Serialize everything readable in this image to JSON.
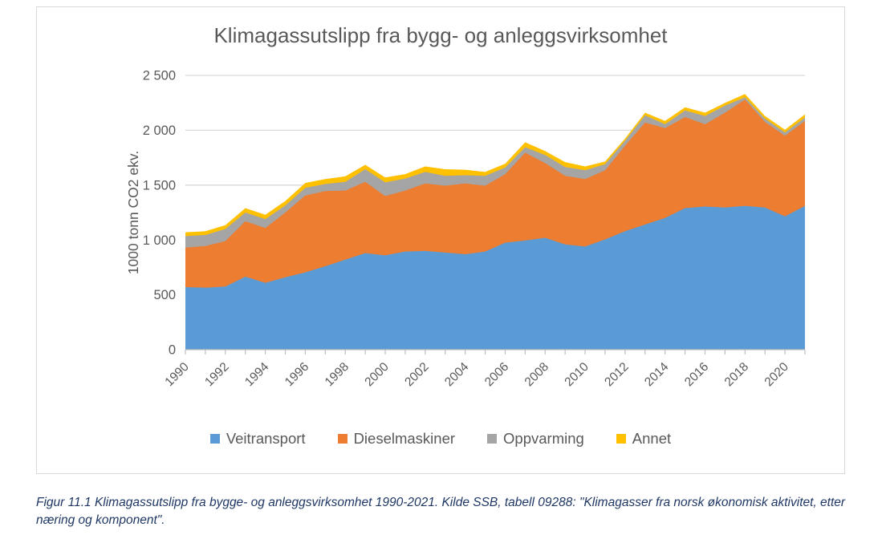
{
  "figure": {
    "title": "Klimagassutslipp fra bygg- og anleggsvirksomhet",
    "y_axis_title": "1000 tonn CO2 ekv.",
    "caption": "Figur 11.1 Klimagassutslipp fra bygge- og anleggsvirksomhet 1990-2021. Kilde SSB, tabell 09288: \"Klimagasser fra norsk økonomisk aktivitet, etter næring og komponent\"."
  },
  "chart_data": {
    "type": "area",
    "stacked": true,
    "title": "Klimagassutslipp fra bygg- og anleggsvirksomhet",
    "xlabel": "",
    "ylabel": "1000 tonn CO2 ekv.",
    "x": [
      1990,
      1991,
      1992,
      1993,
      1994,
      1995,
      1996,
      1997,
      1998,
      1999,
      2000,
      2001,
      2002,
      2003,
      2004,
      2005,
      2006,
      2007,
      2008,
      2009,
      2010,
      2011,
      2012,
      2013,
      2014,
      2015,
      2016,
      2017,
      2018,
      2019,
      2020,
      2021
    ],
    "x_tick_labels": [
      "1990",
      "1992",
      "1994",
      "1996",
      "1998",
      "2000",
      "2002",
      "2004",
      "2006",
      "2008",
      "2010",
      "2012",
      "2014",
      "2016",
      "2018",
      "2020"
    ],
    "ylim": [
      0,
      2500
    ],
    "y_ticks": [
      0,
      500,
      1000,
      1500,
      2000,
      2500
    ],
    "y_tick_labels": [
      "0",
      "500",
      "1 000",
      "1 500",
      "2 000",
      "2 500"
    ],
    "grid": true,
    "legend_position": "bottom",
    "series": [
      {
        "name": "Veitransport",
        "color": "#5B9BD5",
        "values": [
          570,
          565,
          575,
          665,
          610,
          660,
          705,
          760,
          820,
          880,
          860,
          895,
          900,
          885,
          870,
          895,
          975,
          995,
          1020,
          960,
          940,
          1005,
          1080,
          1140,
          1200,
          1290,
          1305,
          1295,
          1310,
          1295,
          1215,
          1310
        ]
      },
      {
        "name": "Dieselmaskiner",
        "color": "#ED7D31",
        "values": [
          360,
          380,
          415,
          505,
          500,
          590,
          700,
          685,
          630,
          650,
          540,
          555,
          615,
          610,
          645,
          600,
          625,
          800,
          680,
          625,
          615,
          630,
          780,
          930,
          820,
          830,
          750,
          865,
          970,
          780,
          735,
          775
        ]
      },
      {
        "name": "Oppvarming",
        "color": "#A5A5A5",
        "values": [
          105,
          100,
          110,
          80,
          80,
          65,
          70,
          65,
          80,
          115,
          125,
          110,
          105,
          90,
          75,
          90,
          60,
          50,
          75,
          80,
          80,
          55,
          45,
          65,
          35,
          60,
          75,
          65,
          20,
          30,
          30,
          30
        ]
      },
      {
        "name": "Annet",
        "color": "#FFC000",
        "values": [
          35,
          35,
          35,
          40,
          40,
          40,
          45,
          45,
          50,
          40,
          45,
          40,
          50,
          60,
          50,
          35,
          35,
          45,
          35,
          45,
          35,
          25,
          20,
          25,
          30,
          30,
          30,
          25,
          30,
          25,
          25,
          30
        ]
      }
    ],
    "style": {
      "text_color": "#595959",
      "gridline_color": "#D9D9D9",
      "axis_line_color": "#BFBFBF",
      "border_color": "#D9D9D9"
    }
  }
}
